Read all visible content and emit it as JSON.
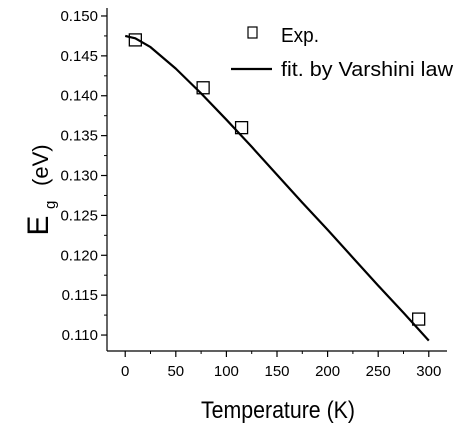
{
  "chart_data": {
    "type": "scatter",
    "title": "",
    "xlabel": "Temperature (K)",
    "ylabel_main": "E",
    "ylabel_sub": "g",
    "ylabel_unit": "(eV)",
    "xlim": [
      -18,
      318
    ],
    "ylim": [
      0.108,
      0.151
    ],
    "x_ticks": [
      0,
      50,
      100,
      150,
      200,
      250,
      300
    ],
    "x_tick_labels": [
      "0",
      "50",
      "100",
      "150",
      "200",
      "250",
      "300"
    ],
    "y_ticks": [
      0.11,
      0.115,
      0.12,
      0.125,
      0.13,
      0.135,
      0.14,
      0.145,
      0.15
    ],
    "y_tick_labels": [
      "0.110",
      "0.115",
      "0.120",
      "0.125",
      "0.130",
      "0.135",
      "0.140",
      "0.145",
      "0.150"
    ],
    "grid": false,
    "legend_position": "top-right",
    "series": [
      {
        "name": "Exp.",
        "kind": "scatter",
        "marker": "open-square",
        "x": [
          10,
          77,
          115,
          290
        ],
        "y": [
          0.147,
          0.141,
          0.136,
          0.112
        ]
      },
      {
        "name": "fit. by Varshini law",
        "kind": "line",
        "x": [
          0,
          10,
          25,
          50,
          75,
          100,
          125,
          150,
          175,
          200,
          225,
          250,
          275,
          300
        ],
        "y": [
          0.1475,
          0.1472,
          0.1461,
          0.1434,
          0.1403,
          0.137,
          0.1336,
          0.1301,
          0.1266,
          0.1232,
          0.1197,
          0.1162,
          0.1128,
          0.1093
        ]
      }
    ]
  }
}
